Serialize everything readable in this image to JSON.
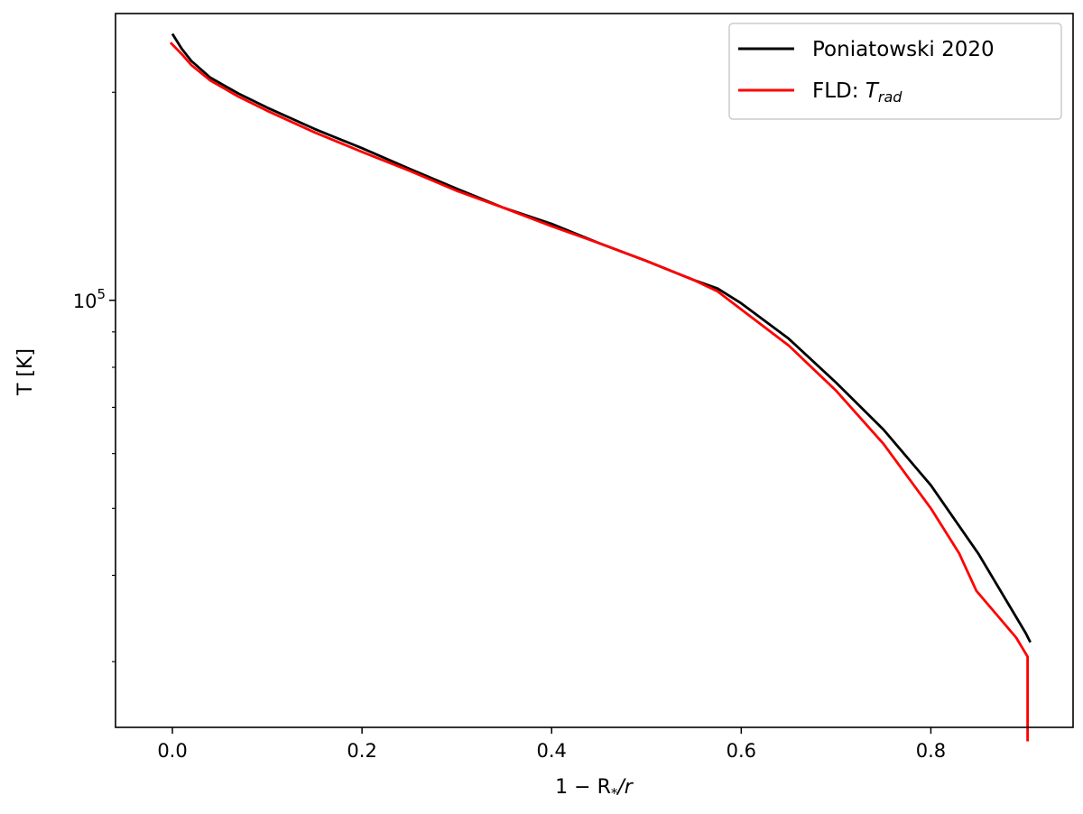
{
  "chart_data": {
    "type": "line",
    "title": "",
    "xlabel": {
      "base": "1 − R",
      "sub": "*",
      "tail": "/r"
    },
    "ylabel": "T [K]",
    "xlim": [
      -0.06,
      0.95
    ],
    "ylim": [
      24100,
      260000
    ],
    "yscale": "log",
    "x_ticks": [
      0.0,
      0.2,
      0.4,
      0.6,
      0.8
    ],
    "x_tick_labels": [
      "0.0",
      "0.2",
      "0.4",
      "0.6",
      "0.8"
    ],
    "y_major_ticks": [
      100000
    ],
    "y_major_tick_labels": [
      {
        "base": "10",
        "exp": "5"
      }
    ],
    "y_minor_ticks": [
      30000,
      40000,
      50000,
      60000,
      70000,
      80000,
      90000,
      200000
    ],
    "grid": false,
    "legend": {
      "position": "top-right",
      "entries": [
        {
          "label": "Poniatowski 2020",
          "color": "#000000"
        },
        {
          "label_base": "FLD: ",
          "label_italic": "T",
          "label_sub": "rad",
          "color": "#ff0000"
        }
      ]
    },
    "series": [
      {
        "name": "Poniatowski 2020",
        "color": "#000000",
        "x": [
          0.0,
          0.01,
          0.02,
          0.04,
          0.07,
          0.1,
          0.15,
          0.2,
          0.25,
          0.3,
          0.35,
          0.4,
          0.45,
          0.5,
          0.55,
          0.575,
          0.6,
          0.65,
          0.7,
          0.75,
          0.8,
          0.85,
          0.9,
          0.905
        ],
        "y": [
          243000,
          231000,
          222000,
          210000,
          199000,
          190000,
          177000,
          166000,
          155000,
          145000,
          136000,
          129000,
          121000,
          114000,
          107000,
          104000,
          99000,
          88000,
          76000,
          65000,
          54000,
          43000,
          33000,
          32000
        ]
      },
      {
        "name": "FLD: Trad",
        "color": "#ff0000",
        "x": [
          -0.002,
          0.01,
          0.02,
          0.04,
          0.07,
          0.1,
          0.15,
          0.2,
          0.25,
          0.3,
          0.35,
          0.4,
          0.45,
          0.5,
          0.55,
          0.575,
          0.6,
          0.65,
          0.7,
          0.75,
          0.8,
          0.83,
          0.848,
          0.87,
          0.89,
          0.902,
          0.902
        ],
        "y": [
          236000,
          227000,
          219000,
          208000,
          197000,
          188000,
          175000,
          164000,
          154000,
          144000,
          136000,
          128000,
          121000,
          114000,
          107000,
          103000,
          97000,
          86000,
          74000,
          62000,
          50000,
          43000,
          38000,
          35000,
          32500,
          30500,
          23000
        ]
      }
    ]
  }
}
